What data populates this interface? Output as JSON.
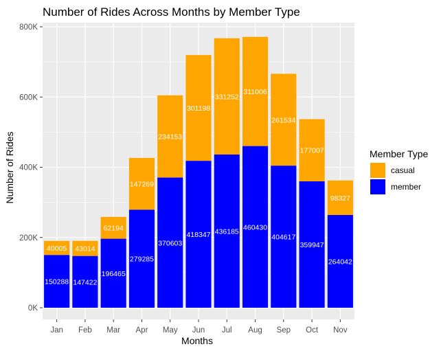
{
  "chart_data": {
    "type": "bar",
    "stacked": true,
    "title": "Number of Rides Across Months by Member Type",
    "xlabel": "Months",
    "ylabel": "Number of Rides",
    "categories": [
      "Jan",
      "Feb",
      "Mar",
      "Apr",
      "May",
      "Jun",
      "Jul",
      "Aug",
      "Sep",
      "Oct",
      "Nov"
    ],
    "series": [
      {
        "name": "member",
        "color": "#0000ff",
        "values": [
          150288,
          147422,
          196465,
          279285,
          370603,
          418347,
          436185,
          460430,
          404617,
          359947,
          264042
        ]
      },
      {
        "name": "casual",
        "color": "#ffa500",
        "values": [
          40005,
          43014,
          62194,
          147269,
          234153,
          301198,
          331252,
          311006,
          261534,
          177007,
          98327
        ]
      }
    ],
    "ylim": [
      0,
      800000
    ],
    "yticks": [
      0,
      200000,
      400000,
      600000,
      800000
    ],
    "ytick_labels": [
      "0K",
      "200K",
      "400K",
      "600K",
      "800K"
    ],
    "grid": true,
    "panel_background": "#ebebeb",
    "legend": {
      "title": "Member Type",
      "placement": "right",
      "items": [
        {
          "label": "casual",
          "color": "#ffa500"
        },
        {
          "label": "member",
          "color": "#0000ff"
        }
      ]
    }
  }
}
